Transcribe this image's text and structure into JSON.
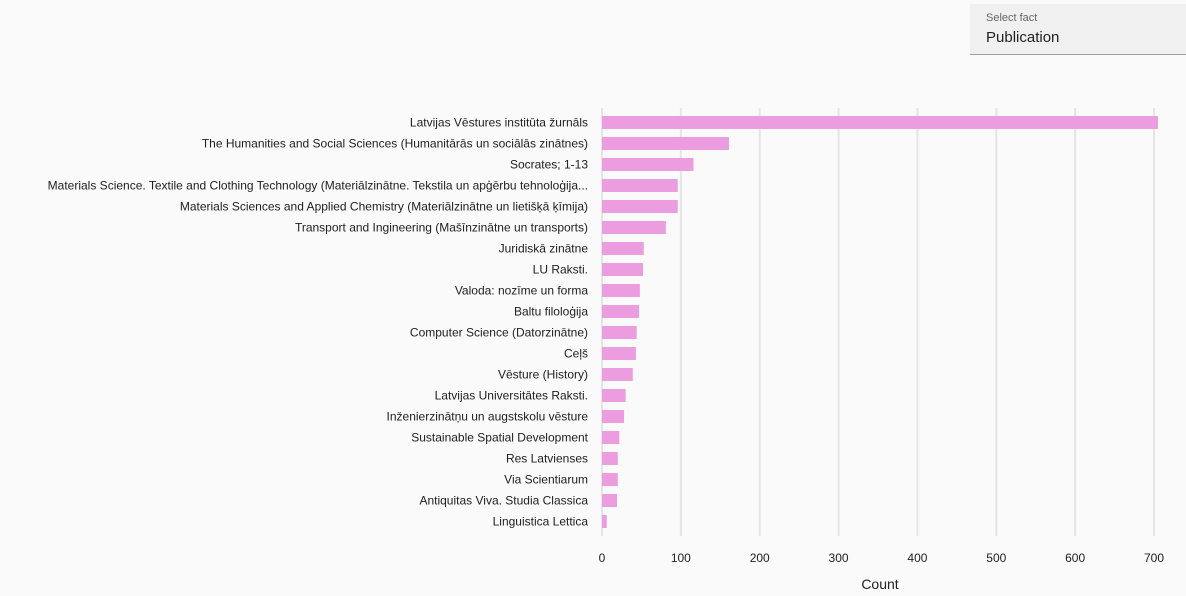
{
  "select": {
    "label": "Select fact",
    "value": "Publication"
  },
  "chart_data": {
    "type": "bar",
    "orientation": "horizontal",
    "categories": [
      "Latvijas Vēstures institūta žurnāls",
      "The Humanities and Social Sciences (Humanitārās un sociālās zinātnes)",
      "Socrates; 1-13",
      "Materials Science. Textile and Clothing Technology (Materiālzinātne. Tekstila un apģērbu tehnoloģija...",
      "Materials Sciences and Applied Chemistry (Materiālzinātne un lietišķā ķīmija)",
      "Transport and Ingineering (Mašīnzinātne un transports)",
      "Juridiskā zinātne",
      "LU Raksti.",
      "Valoda: nozīme un forma",
      "Baltu filoloģija",
      "Computer Science (Datorzinātne)",
      "Ceļš",
      "Vēsture (History)",
      "Latvijas Universitātes Raksti.",
      "Inženierzinātņu un augstskolu vēsture",
      "Sustainable Spatial Development",
      "Res Latvienses",
      "Via Scientiarum",
      "Antiquitas Viva. Studia Classica",
      "Linguistica Lettica"
    ],
    "values": [
      705,
      161,
      116,
      96,
      96,
      81,
      53,
      52,
      48,
      47,
      44,
      43,
      39,
      30,
      28,
      22,
      20,
      20,
      19,
      6
    ],
    "xlabel": "Count",
    "ylabel": "",
    "xlim": [
      0,
      710
    ],
    "xticks": [
      0,
      100,
      200,
      300,
      400,
      500,
      600,
      700
    ],
    "grid": true,
    "bar_color": "#ec9ddf",
    "grid_color": "#e5e5e5"
  }
}
